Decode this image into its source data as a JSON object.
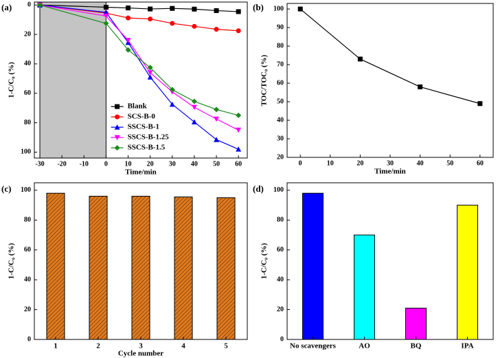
{
  "chart_data": [
    {
      "type": "line",
      "label": "(a)",
      "xlabel": "Time/min",
      "ylabel": "1-C/C₀ (%)",
      "x": [
        -30,
        0,
        10,
        20,
        30,
        40,
        50,
        60
      ],
      "series": [
        {
          "name": "Blank",
          "color": "#000000",
          "marker": "square",
          "values": [
            0,
            1.5,
            2,
            2.7,
            2.3,
            2.8,
            3.8,
            4.5
          ]
        },
        {
          "name": "SCS-B-0",
          "color": "#ff0000",
          "marker": "circle",
          "values": [
            0,
            5.5,
            8.8,
            9.5,
            12.5,
            14.5,
            16.5,
            17.5
          ]
        },
        {
          "name": "SSCS-B-1",
          "color": "#0000ff",
          "marker": "triangle-up",
          "values": [
            0,
            5,
            25.5,
            49,
            67.5,
            79.5,
            91.5,
            98
          ]
        },
        {
          "name": "SSCS-B-1.25",
          "color": "#ff00ff",
          "marker": "triangle-down",
          "values": [
            0,
            7.5,
            24,
            46,
            59,
            69.5,
            77.5,
            85
          ]
        },
        {
          "name": "SSCS-B-1.5",
          "color": "#1a8a1a",
          "marker": "diamond",
          "values": [
            0,
            12.5,
            30.5,
            42.5,
            57.5,
            65.5,
            71,
            75
          ]
        }
      ],
      "shaded_x": [
        -30,
        0
      ],
      "shade_color": "#c4c4c4",
      "xlim": [
        -32.5,
        64
      ],
      "xticks": [
        -30,
        -20,
        -10,
        0,
        10,
        20,
        30,
        40,
        50,
        60
      ],
      "ylim": [
        104,
        -2
      ],
      "yticks": [
        0,
        20,
        40,
        60,
        80,
        100
      ],
      "legend": "center"
    },
    {
      "type": "line",
      "label": "(b)",
      "xlabel": "Time/min",
      "ylabel": "TOC/TOC₀ (%)",
      "x": [
        0,
        20,
        40,
        60
      ],
      "series": [
        {
          "color": "#000000",
          "marker": "square",
          "values": [
            100,
            73,
            58,
            49
          ]
        }
      ],
      "xlim": [
        -4.4,
        64.4
      ],
      "xticks": [
        0,
        10,
        20,
        30,
        40,
        50,
        60
      ],
      "ylim": [
        20,
        103
      ],
      "yticks": [
        20,
        30,
        40,
        50,
        60,
        70,
        80,
        90,
        100
      ]
    },
    {
      "type": "bar",
      "label": "(c)",
      "xlabel": "Cycle number",
      "ylabel": "1-C/C₀ (%)",
      "categories": [
        "1",
        "2",
        "3",
        "4",
        "5"
      ],
      "values": [
        98,
        96,
        96,
        95.5,
        95
      ],
      "color": "#e07b20",
      "hatch": true,
      "ylim": [
        0,
        105
      ],
      "yticks": [
        0,
        20,
        40,
        60,
        80,
        100
      ]
    },
    {
      "type": "bar",
      "label": "(d)",
      "ylabel": "1-C/C₀ (%)",
      "categories": [
        "No scavengers",
        "AO",
        "BQ",
        "IPA"
      ],
      "values": [
        98,
        70,
        21,
        90
      ],
      "colors": [
        "#0000ff",
        "#00ffff",
        "#ff00ff",
        "#ffff00"
      ],
      "ylim": [
        0,
        105
      ],
      "yticks": [
        0,
        20,
        40,
        60,
        80,
        100
      ]
    }
  ]
}
